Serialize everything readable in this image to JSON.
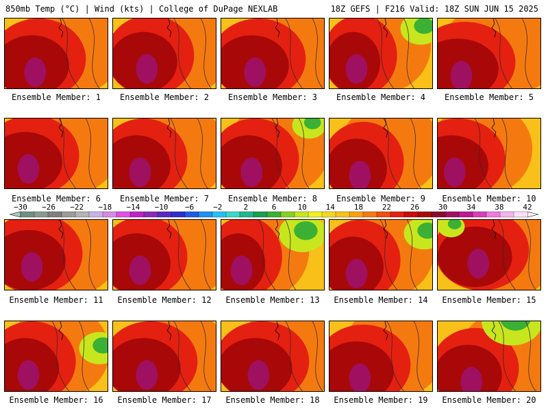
{
  "header": {
    "left": "850mb Temp (°C) | Wind (kts) | College of DuPage NEXLAB",
    "right": "18Z GEFS | F216 Valid: 18Z SUN JUN 15 2025"
  },
  "panels": [
    {
      "label": "Ensemble Member: 1"
    },
    {
      "label": "Ensemble Member: 2"
    },
    {
      "label": "Ensemble Member: 3"
    },
    {
      "label": "Ensemble Member: 4"
    },
    {
      "label": "Ensemble Member: 5"
    },
    {
      "label": "Ensemble Member: 6"
    },
    {
      "label": "Ensemble Member: 7"
    },
    {
      "label": "Ensemble Member: 8"
    },
    {
      "label": "Ensemble Member: 9"
    },
    {
      "label": "Ensemble Member: 10"
    },
    {
      "label": "Ensemble Member: 11"
    },
    {
      "label": "Ensemble Member: 12"
    },
    {
      "label": "Ensemble Member: 13"
    },
    {
      "label": "Ensemble Member: 14"
    },
    {
      "label": "Ensemble Member: 15"
    },
    {
      "label": "Ensemble Member: 16"
    },
    {
      "label": "Ensemble Member: 17"
    },
    {
      "label": "Ensemble Member: 18"
    },
    {
      "label": "Ensemble Member: 19"
    },
    {
      "label": "Ensemble Member: 20"
    }
  ],
  "colorbar": {
    "tick_labels": [
      "−30",
      "−26",
      "−22",
      "−18",
      "−14",
      "−10",
      "−6",
      "−2",
      "2",
      "6",
      "10",
      "14",
      "18",
      "22",
      "26",
      "30",
      "34",
      "38",
      "42"
    ],
    "colors": [
      "#6f8f7f",
      "#8a9a90",
      "#7f7f7f",
      "#9c9c9c",
      "#b4b4b4",
      "#c8b4e6",
      "#d68ae6",
      "#e050e6",
      "#c020c8",
      "#8a2ab8",
      "#5a28c0",
      "#2c2cd0",
      "#1e5ae6",
      "#1e90f0",
      "#26c0f4",
      "#3ad8c8",
      "#20b890",
      "#16a050",
      "#3cb034",
      "#8ad020",
      "#c8e61e",
      "#f0f020",
      "#f4d820",
      "#f8c018",
      "#f8a010",
      "#f47a10",
      "#ee4e10",
      "#e42010",
      "#c80c0c",
      "#a80808",
      "#8c0a2c",
      "#a01060",
      "#c01a90",
      "#d840b8",
      "#ee7ae0",
      "#f6b4ee",
      "#f8e0f6"
    ]
  }
}
